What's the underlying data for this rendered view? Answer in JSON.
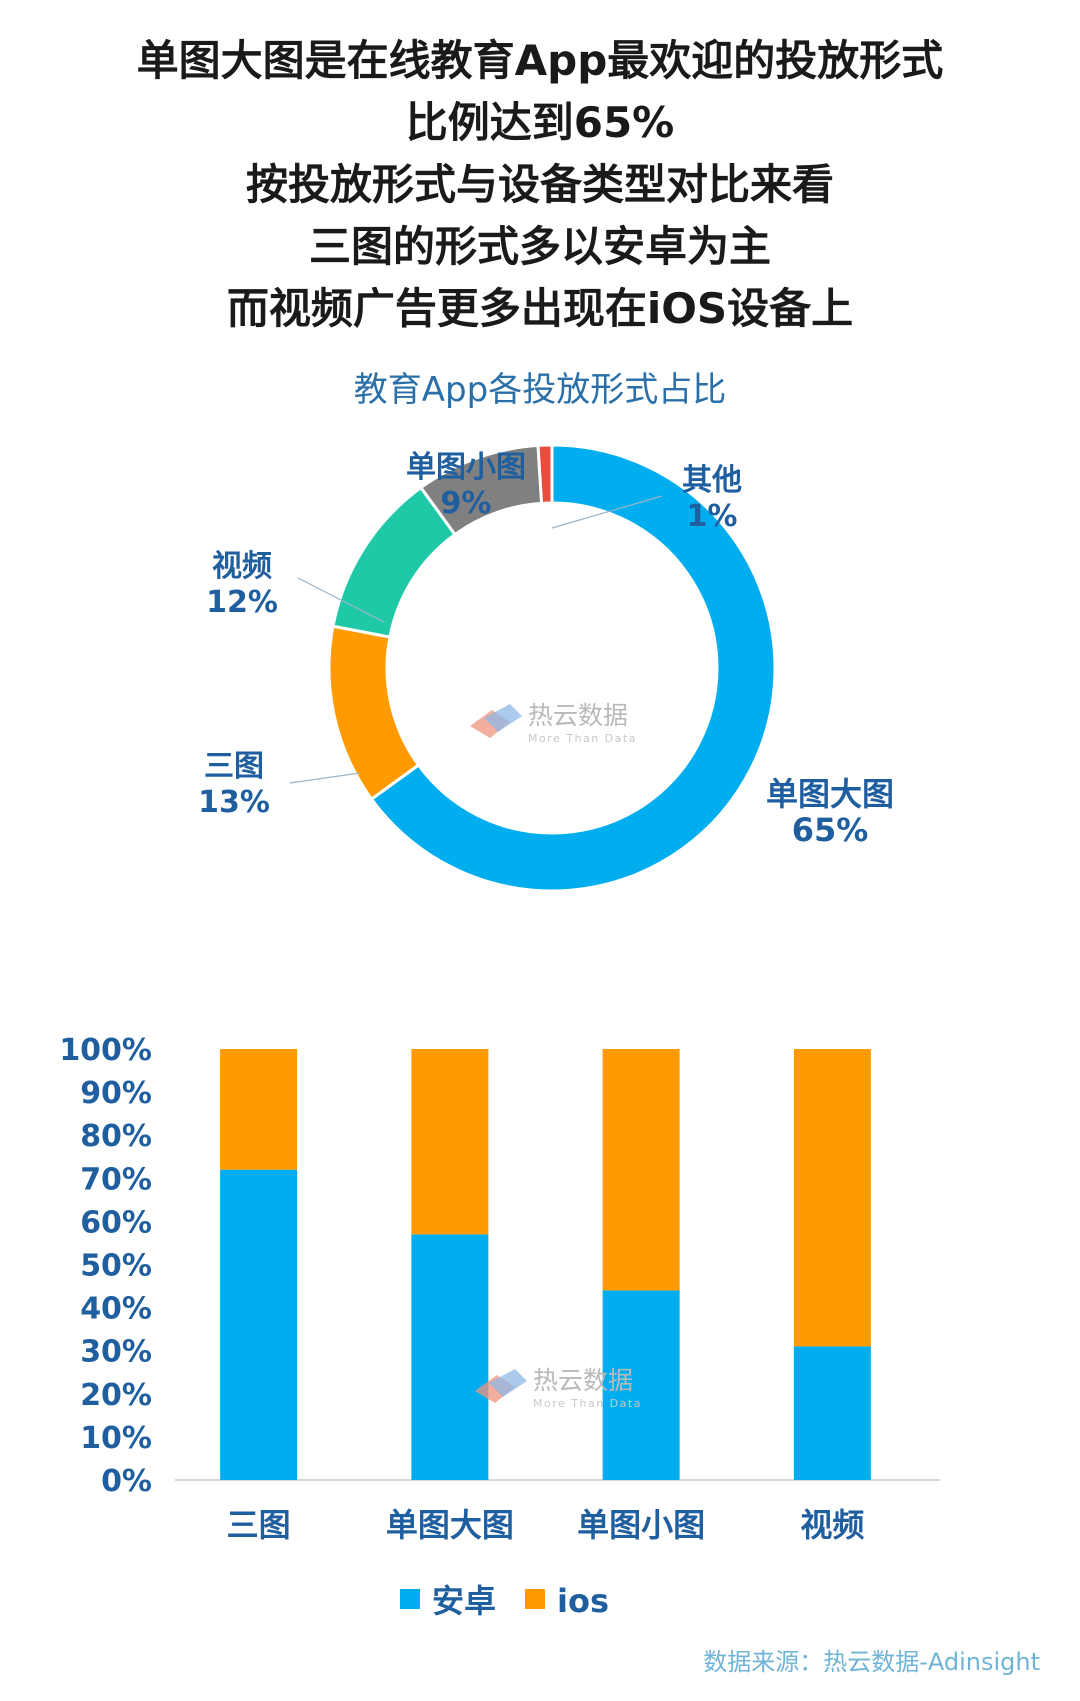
{
  "headline": [
    "单图大图是在线教育App最欢迎的投放形式",
    "比例达到65%",
    "按投放形式与设备类型对比来看",
    "三图的形式多以安卓为主",
    "而视频广告更多出现在iOS设备上"
  ],
  "watermark": {
    "name": "热云数据",
    "tagline": "More Than Data"
  },
  "source": "数据来源：热云数据-Adinsight",
  "colors": {
    "android": "#00aef0",
    "ios": "#ff9a00",
    "donut_single_large": "#00aef0",
    "donut_three": "#ff9a00",
    "donut_video": "#1fc9a8",
    "donut_single_small": "#808080",
    "donut_other": "#e84c3d",
    "label": "#1f5fa0"
  },
  "chart_data": [
    {
      "type": "pie",
      "title": "教育App各投放形式占比",
      "donut": true,
      "slices": [
        {
          "label": "单图大图",
          "value": 65,
          "value_label": "65%"
        },
        {
          "label": "三图",
          "value": 13,
          "value_label": "13%"
        },
        {
          "label": "视频",
          "value": 12,
          "value_label": "12%"
        },
        {
          "label": "单图小图",
          "value": 9,
          "value_label": "9%"
        },
        {
          "label": "其他",
          "value": 1,
          "value_label": "1%"
        }
      ]
    },
    {
      "type": "bar",
      "stacked": true,
      "categories": [
        "三图",
        "单图大图",
        "单图小图",
        "视频"
      ],
      "series": [
        {
          "name": "安卓",
          "values": [
            72,
            57,
            44,
            31
          ]
        },
        {
          "name": "ios",
          "values": [
            28,
            43,
            56,
            69
          ]
        }
      ],
      "ylim": [
        0,
        100
      ],
      "yticks": [
        "0%",
        "10%",
        "20%",
        "30%",
        "40%",
        "50%",
        "60%",
        "70%",
        "80%",
        "90%",
        "100%"
      ],
      "legend_position": "bottom"
    }
  ]
}
